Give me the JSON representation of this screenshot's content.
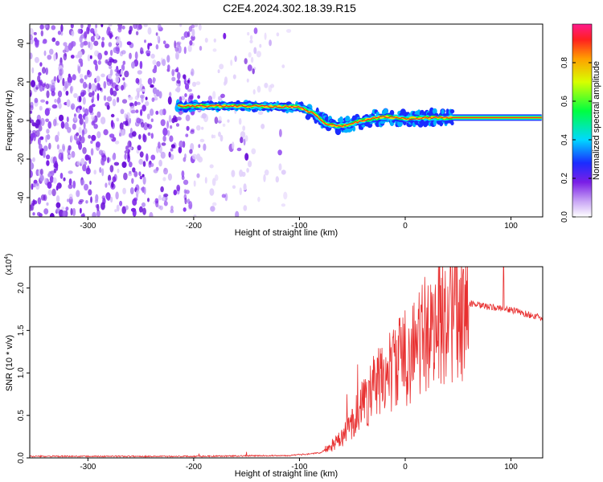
{
  "title": "C2E4.2024.302.18.39.R15",
  "chart_data": [
    {
      "type": "heatmap",
      "xlabel": "Height of straight line (km)",
      "ylabel": "Frequency (Hz)",
      "xlim": [
        -355,
        130
      ],
      "ylim": [
        -50,
        50
      ],
      "x_ticks": [
        -300,
        -200,
        -100,
        0,
        100
      ],
      "y_ticks": [
        -40,
        -20,
        0,
        20,
        40
      ],
      "colorbar": {
        "label": "Normalized spectral amplitude",
        "range": [
          0,
          1
        ],
        "ticks": [
          0.0,
          0.2,
          0.4,
          0.6,
          0.8
        ]
      },
      "ridge": {
        "start_x": -215,
        "end_x": 130,
        "points": [
          [
            -215,
            7.5
          ],
          [
            -150,
            7.5
          ],
          [
            -100,
            7
          ],
          [
            -85,
            3
          ],
          [
            -75,
            -2
          ],
          [
            -60,
            -3
          ],
          [
            -40,
            0
          ],
          [
            -20,
            2
          ],
          [
            0,
            1
          ],
          [
            40,
            1.5
          ],
          [
            130,
            1.5
          ]
        ]
      },
      "colors": {
        "noise": "#7a1ee6",
        "ridge_core": "#ff1a1a"
      }
    },
    {
      "type": "line",
      "xlabel": "Height of straight line (km)",
      "ylabel": "SNR (10 * v/v)",
      "y_scale_label": "(x10",
      "y_scale_exp": "4",
      "y_scale_close": ")",
      "xlim": [
        -355,
        130
      ],
      "ylim": [
        0,
        2.25
      ],
      "x_ticks": [
        -300,
        -200,
        -100,
        0,
        100
      ],
      "y_ticks": [
        "0.0",
        "0.5",
        "1.0",
        "1.5",
        "2.0"
      ],
      "series": [
        {
          "color": "#e83030",
          "envelope": [
            [
              -355,
              0.02
            ],
            [
              -200,
              0.02
            ],
            [
              -110,
              0.03
            ],
            [
              -80,
              0.06
            ],
            [
              -60,
              0.25
            ],
            [
              -40,
              0.7
            ],
            [
              -20,
              1.05
            ],
            [
              0,
              1.3
            ],
            [
              20,
              1.6
            ],
            [
              40,
              1.85
            ],
            [
              55,
              1.85
            ],
            [
              70,
              1.8
            ],
            [
              100,
              1.75
            ],
            [
              130,
              1.65
            ]
          ],
          "spikes": [
            [
              -150,
              0.07
            ],
            [
              -195,
              0.05
            ],
            [
              -55,
              0.75
            ],
            [
              -45,
              1.1
            ],
            [
              -5,
              1.65
            ],
            [
              15,
              1.8
            ],
            [
              38,
              2.2
            ],
            [
              55,
              2.22
            ],
            [
              93,
              2.25
            ],
            [
              -30,
              1.2
            ],
            [
              25,
              1.95
            ]
          ]
        }
      ]
    }
  ]
}
